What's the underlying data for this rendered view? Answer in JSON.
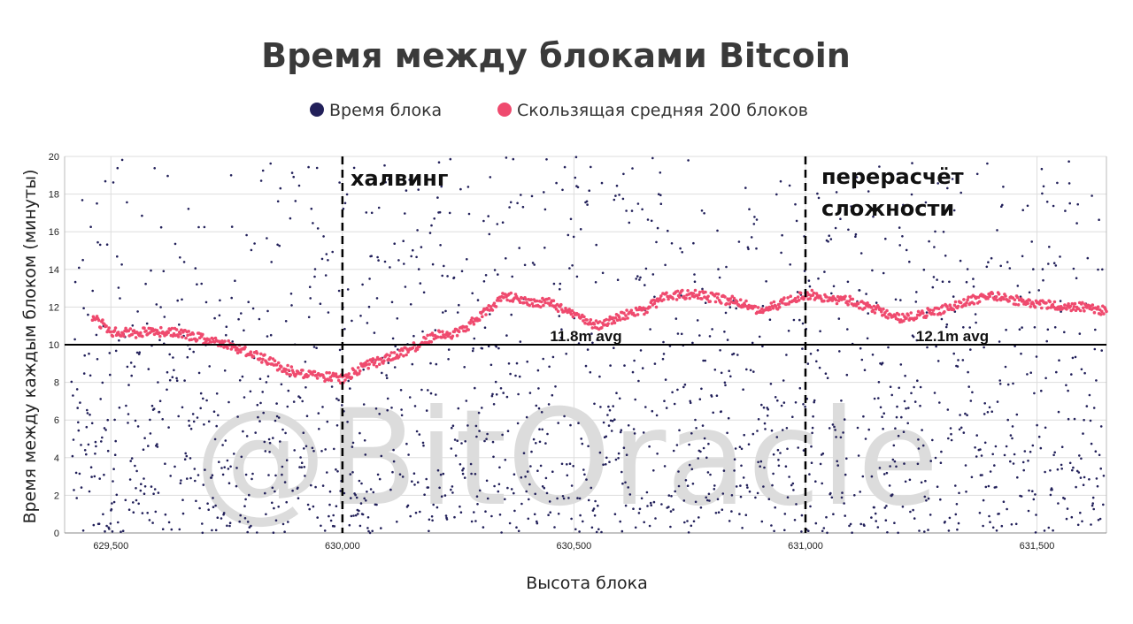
{
  "chart_data": {
    "type": "scatter",
    "title": "Время между блоками Bitcoin",
    "xlabel": "Высота блока",
    "ylabel": "Время между каждым блоком (минуты)",
    "xlim": [
      629400,
      631650
    ],
    "ylim": [
      0,
      20
    ],
    "x_ticks": [
      629500,
      630000,
      630500,
      631000,
      631500
    ],
    "x_tick_labels": [
      "629,500",
      "630,000",
      "630,500",
      "631,000",
      "631,500"
    ],
    "y_ticks": [
      0,
      2,
      4,
      6,
      8,
      10,
      12,
      14,
      16,
      18,
      20
    ],
    "y_tick_labels": [
      "0",
      "2",
      "4",
      "6",
      "8",
      "10",
      "12",
      "14",
      "16",
      "18",
      "20"
    ],
    "grid": true,
    "legend_placement": "top-center",
    "reference_line": {
      "y": 10
    },
    "series": [
      {
        "name": "Время блока",
        "color": "#22205a",
        "kind": "scatter",
        "n_points": 2200,
        "mean": 11.9
      },
      {
        "name": "Скользящая средняя 200 блоков",
        "color": "#ef4a6e",
        "kind": "line",
        "x": [
          629460,
          629500,
          629550,
          629600,
          629650,
          629700,
          629750,
          629800,
          629850,
          629900,
          629950,
          630000,
          630050,
          630100,
          630150,
          630200,
          630250,
          630300,
          630350,
          630400,
          630450,
          630500,
          630550,
          630600,
          630650,
          630700,
          630750,
          630800,
          630850,
          630900,
          630950,
          631000,
          631050,
          631100,
          631150,
          631200,
          631250,
          631300,
          631350,
          631400,
          631450,
          631500,
          631550,
          631600,
          631650
        ],
        "values": [
          11.5,
          10.7,
          10.6,
          10.7,
          10.6,
          10.3,
          10.0,
          9.6,
          9.0,
          8.5,
          8.3,
          8.2,
          8.9,
          9.3,
          9.8,
          10.5,
          10.6,
          11.6,
          12.6,
          12.3,
          12.2,
          11.6,
          11.0,
          11.5,
          11.8,
          12.6,
          12.7,
          12.5,
          12.3,
          11.8,
          12.2,
          12.7,
          12.5,
          12.3,
          11.9,
          11.4,
          11.6,
          11.9,
          12.3,
          12.6,
          12.4,
          12.2,
          12.1,
          12.0,
          11.8
        ]
      }
    ],
    "annotations": [
      {
        "type": "vline",
        "x": 630000,
        "label": "халвинг"
      },
      {
        "type": "vline",
        "x": 631000,
        "label_lines": [
          "перерасчёт",
          "сложности"
        ]
      },
      {
        "type": "text",
        "x": 630500,
        "y": 10.3,
        "label": "11.8m avg"
      },
      {
        "type": "text",
        "x": 631500,
        "y": 10.3,
        "label": "12.1m avg"
      }
    ],
    "watermark": "@BitOracle"
  }
}
